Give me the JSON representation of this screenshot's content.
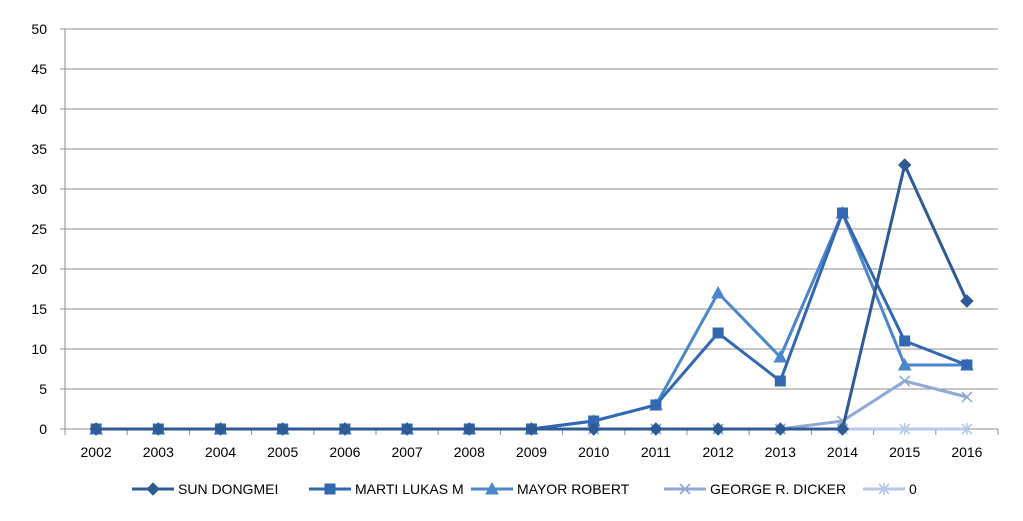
{
  "chart_data": {
    "type": "line",
    "title": "",
    "xlabel": "",
    "ylabel": "",
    "categories": [
      "2002",
      "2003",
      "2004",
      "2005",
      "2006",
      "2007",
      "2008",
      "2009",
      "2010",
      "2011",
      "2012",
      "2013",
      "2014",
      "2015",
      "2016"
    ],
    "ylim": [
      0,
      50
    ],
    "yticks": [
      0,
      5,
      10,
      15,
      20,
      25,
      30,
      35,
      40,
      45,
      50
    ],
    "grid": "horizontal",
    "legend_position": "bottom",
    "series": [
      {
        "name": "SUN DONGMEI",
        "marker": "diamond",
        "color": "#2E5A95",
        "values": [
          0,
          0,
          0,
          0,
          0,
          0,
          0,
          0,
          0,
          0,
          0,
          0,
          0,
          33,
          16
        ]
      },
      {
        "name": "MARTI LUKAS M",
        "marker": "square",
        "color": "#3267B1",
        "values": [
          0,
          0,
          0,
          0,
          0,
          0,
          0,
          0,
          1,
          3,
          12,
          6,
          27,
          11,
          8
        ]
      },
      {
        "name": "MAYOR ROBERT",
        "marker": "triangle",
        "color": "#4A86CB",
        "values": [
          0,
          0,
          0,
          0,
          0,
          0,
          0,
          0,
          1,
          3,
          17,
          9,
          27,
          8,
          8
        ]
      },
      {
        "name": "GEORGE R. DICKER",
        "marker": "x",
        "color": "#8FA8D6",
        "values": [
          0,
          0,
          0,
          0,
          0,
          0,
          0,
          0,
          0,
          0,
          0,
          0,
          1,
          6,
          4
        ]
      },
      {
        "name": "0",
        "marker": "asterisk",
        "color": "#B8C8E8",
        "values": [
          0,
          0,
          0,
          0,
          0,
          0,
          0,
          0,
          0,
          0,
          0,
          0,
          0,
          0,
          0
        ]
      }
    ]
  }
}
